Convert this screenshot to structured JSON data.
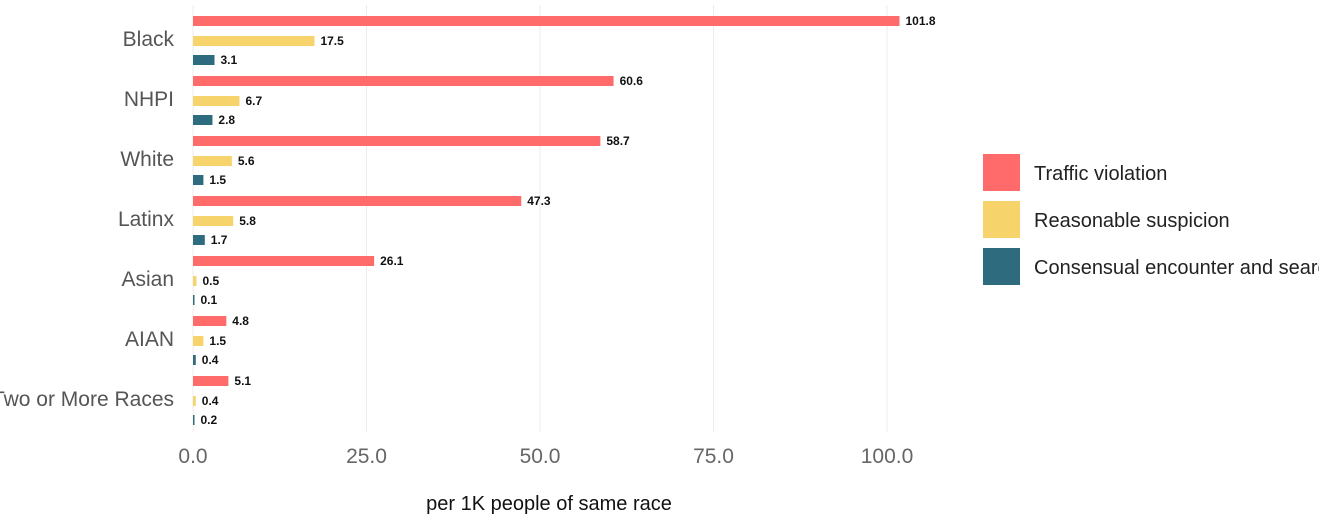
{
  "chart_data": {
    "type": "bar",
    "orientation": "horizontal",
    "categories": [
      "Black",
      "NHPI",
      "White",
      "Latinx",
      "Asian",
      "AIAN",
      "Two or More Races"
    ],
    "series": [
      {
        "name": "Traffic violation",
        "color": "#FF6B6B",
        "values": [
          101.8,
          60.6,
          58.7,
          47.3,
          26.1,
          4.8,
          5.1
        ]
      },
      {
        "name": "Reasonable suspicion",
        "color": "#F7D46B",
        "values": [
          17.5,
          6.7,
          5.6,
          5.8,
          0.5,
          1.5,
          0.4
        ]
      },
      {
        "name": "Consensual encounter and search",
        "color": "#2F6B7E",
        "values": [
          3.1,
          2.8,
          1.5,
          1.7,
          0.1,
          0.4,
          0.2
        ]
      }
    ],
    "data_labels": [
      [
        "101.8",
        "17.5",
        "3.1"
      ],
      [
        "60.6",
        "6.7",
        "2.8"
      ],
      [
        "58.7",
        "5.6",
        "1.5"
      ],
      [
        "47.3",
        "5.8",
        "1.7"
      ],
      [
        "26.1",
        "0.5",
        "0.1"
      ],
      [
        "4.8",
        "1.5",
        "0.4"
      ],
      [
        "5.1",
        "0.4",
        "0.2"
      ]
    ],
    "xticks": [
      0,
      25,
      50,
      75,
      100
    ],
    "xtick_labels": [
      "0.0",
      "25.0",
      "50.0",
      "75.0",
      "100.0"
    ],
    "xlim": [
      0,
      110
    ],
    "xlabel": "per 1K people of same race",
    "grid": true,
    "legend_position": "right"
  }
}
